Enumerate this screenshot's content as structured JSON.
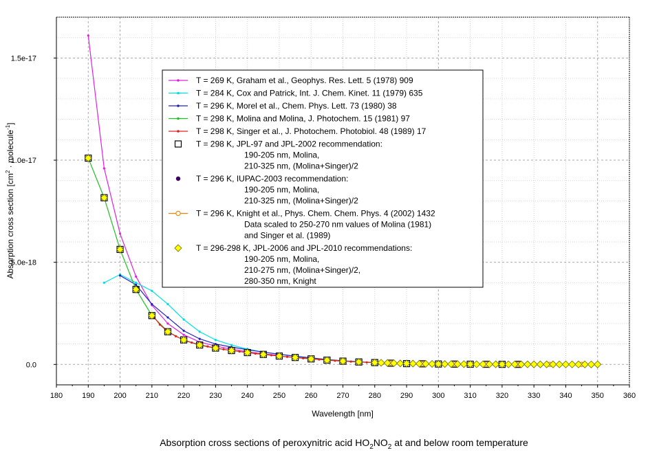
{
  "chart_data": {
    "type": "line",
    "title": "Absorption cross sections of peroxynitric acid HO2NO2 at and below room temperature",
    "xlabel": "Wavelength [nm]",
    "ylabel_main": "Absorption cross section [cm",
    "ylabel_mid": " · molecule",
    "ylabel_end": "]",
    "ylabel_sup1": "2",
    "ylabel_sup2": "-1",
    "xlim": [
      180,
      360
    ],
    "ylim": [
      -1e-18,
      1.7e-17
    ],
    "x_ticks": [
      180,
      190,
      200,
      210,
      220,
      230,
      240,
      250,
      260,
      270,
      280,
      290,
      300,
      310,
      320,
      330,
      340,
      350,
      360
    ],
    "y_ticks": [
      {
        "value": 0,
        "label": "0.0"
      },
      {
        "value": 5e-18,
        "label": "5.0e-18"
      },
      {
        "value": 1e-17,
        "label": "1.0e-17"
      },
      {
        "value": 1.5e-17,
        "label": "1.5e-17"
      }
    ],
    "series": [
      {
        "name": "Graham 1978",
        "color": "#e020e0",
        "marker": "dot",
        "x": [
          190,
          195,
          200,
          205,
          210,
          215,
          220,
          225,
          230,
          235,
          240,
          245,
          250
        ],
        "y": [
          1.61e-17,
          9.6e-18,
          6.4e-18,
          4.3e-18,
          2.9e-18,
          2e-18,
          1.45e-18,
          1.1e-18,
          9e-19,
          7.5e-19,
          6.2e-19,
          5.2e-19,
          4.4e-19
        ]
      },
      {
        "name": "Cox and Patrick 1979",
        "color": "#00e0e0",
        "marker": "dot",
        "x": [
          195,
          200,
          205,
          210,
          215,
          220,
          225,
          230,
          235,
          240,
          245,
          250,
          255,
          260,
          265
        ],
        "y": [
          4e-18,
          4.4e-18,
          4e-18,
          3.6e-18,
          2.95e-18,
          2.2e-18,
          1.6e-18,
          1.2e-18,
          9.5e-19,
          7.5e-19,
          6e-19,
          5e-19,
          4e-19,
          3e-19,
          2e-19
        ]
      },
      {
        "name": "Morel 1980",
        "color": "#2020c0",
        "marker": "dot",
        "x": [
          200,
          205,
          210,
          215,
          220,
          225,
          230,
          235,
          240,
          245,
          250,
          255,
          260,
          265,
          270,
          275,
          280
        ],
        "y": [
          4.35e-18,
          3.9e-18,
          2.95e-18,
          2.3e-18,
          1.65e-18,
          1.25e-18,
          1e-18,
          8.5e-19,
          7.2e-19,
          6e-19,
          5e-19,
          4e-19,
          3.2e-19,
          2.4e-19,
          1.8e-19,
          1.3e-19,
          9e-20
        ]
      },
      {
        "name": "Molina and Molina 1981",
        "color": "#20c020",
        "marker": "dot",
        "x": [
          190,
          195,
          200,
          205,
          210,
          215,
          220,
          225,
          230,
          235,
          240,
          245,
          250,
          255,
          260,
          265,
          270,
          275,
          280,
          285,
          290,
          295,
          300,
          305,
          310,
          315,
          320,
          325
        ],
        "y": [
          1.01e-17,
          8.16e-18,
          5.63e-18,
          3.67e-18,
          2.39e-18,
          1.61e-18,
          1.18e-18,
          9.4e-19,
          7.9e-19,
          6.8e-19,
          5.8e-19,
          4.9e-19,
          4.1e-19,
          3.4e-19,
          2.8e-19,
          2.2e-19,
          1.6e-19,
          1.2e-19,
          9e-20,
          6e-20,
          4e-20,
          3e-20,
          2e-20,
          1.5e-20,
          1e-20,
          7e-21,
          5e-21,
          3e-21
        ]
      },
      {
        "name": "Singer 1989",
        "color": "#e02020",
        "marker": "dot",
        "x": [
          210,
          212.5,
          215,
          217.5,
          220,
          222.5,
          225,
          227.5,
          230,
          232.5,
          235,
          237.5,
          240,
          242.5,
          245,
          247.5,
          250,
          252.5,
          255,
          257.5,
          260,
          262.5,
          265,
          267.5,
          270,
          272.5,
          275,
          277.5,
          280
        ],
        "y": [
          2.45e-18,
          1.95e-18,
          1.6e-18,
          1.38e-18,
          1.2e-18,
          1.07e-18,
          9.6e-19,
          8.8e-19,
          8e-19,
          7.4e-19,
          6.8e-19,
          6.3e-19,
          5.8e-19,
          5.3e-19,
          4.9e-19,
          4.5e-19,
          4.1e-19,
          3.7e-19,
          3.4e-19,
          3e-19,
          2.7e-19,
          2.4e-19,
          2.1e-19,
          1.8e-19,
          1.6e-19,
          1.4e-19,
          1.2e-19,
          1e-19,
          9e-20
        ]
      },
      {
        "name": "JPL-97 / JPL-2002",
        "color": "#000000",
        "marker": "open-square",
        "x": [
          190,
          195,
          200,
          205,
          210,
          215,
          220,
          225,
          230,
          235,
          240,
          245,
          250,
          255,
          260,
          265,
          270,
          275,
          280,
          285,
          290,
          295,
          300,
          305,
          310,
          315,
          320,
          325
        ],
        "y": [
          1.01e-17,
          8.16e-18,
          5.63e-18,
          3.67e-18,
          2.39e-18,
          1.6e-18,
          1.2e-18,
          9.5e-19,
          8e-19,
          6.8e-19,
          5.8e-19,
          4.9e-19,
          4.1e-19,
          3.4e-19,
          2.7e-19,
          2.1e-19,
          1.6e-19,
          1.2e-19,
          9e-20,
          6e-20,
          4e-20,
          3e-20,
          2e-20,
          1.5e-20,
          1e-20,
          7e-21,
          5e-21,
          3e-21
        ]
      },
      {
        "name": "IUPAC-2003",
        "color": "#400060",
        "marker": "filled-circle",
        "x": [
          190,
          195,
          200,
          205,
          210,
          215,
          220,
          225,
          230,
          235,
          240,
          245,
          250,
          255,
          260,
          265,
          270,
          275,
          280,
          285,
          290,
          295,
          300,
          305,
          310,
          315,
          320,
          325
        ],
        "y": [
          1.01e-17,
          8.16e-18,
          5.63e-18,
          3.67e-18,
          2.39e-18,
          1.6e-18,
          1.2e-18,
          9.5e-19,
          8e-19,
          6.8e-19,
          5.8e-19,
          4.9e-19,
          4.1e-19,
          3.4e-19,
          2.7e-19,
          2.1e-19,
          1.6e-19,
          1.2e-19,
          9e-20,
          6e-20,
          4e-20,
          3e-20,
          2e-20,
          1.5e-20,
          1e-20,
          7e-21,
          5e-21,
          3e-21
        ]
      },
      {
        "name": "Knight 2002",
        "color": "#f08000",
        "marker": "open-circle",
        "x": [
          280,
          285,
          290,
          295,
          300,
          305,
          310,
          315,
          320,
          325,
          330,
          335,
          340,
          345,
          350
        ],
        "y": [
          9e-20,
          6e-20,
          4.5e-20,
          3e-20,
          2.2e-20,
          1.6e-20,
          1.1e-20,
          8e-21,
          6e-21,
          4e-21,
          3e-21,
          2e-21,
          1.5e-21,
          1e-21,
          7e-22
        ]
      },
      {
        "name": "JPL-2006 / JPL-2010",
        "color": "#ffff00",
        "marker": "diamond",
        "x": [
          190,
          195,
          200,
          205,
          210,
          215,
          220,
          225,
          230,
          235,
          240,
          245,
          250,
          255,
          260,
          265,
          270,
          275,
          280,
          282,
          284,
          286,
          288,
          290,
          292,
          294,
          296,
          298,
          300,
          302,
          304,
          306,
          308,
          310,
          312,
          314,
          316,
          318,
          320,
          322,
          324,
          326,
          328,
          330,
          332,
          334,
          336,
          338,
          340,
          342,
          344,
          346,
          348,
          350
        ],
        "y": [
          1.01e-17,
          8.16e-18,
          5.63e-18,
          3.67e-18,
          2.39e-18,
          1.6e-18,
          1.2e-18,
          9.5e-19,
          8e-19,
          6.8e-19,
          5.8e-19,
          4.9e-19,
          4.1e-19,
          3.4e-19,
          2.7e-19,
          2.1e-19,
          1.6e-19,
          1.2e-19,
          9e-20,
          8e-20,
          7e-20,
          6e-20,
          5e-20,
          4.5e-20,
          4e-20,
          3.5e-20,
          3e-20,
          2.6e-20,
          2.2e-20,
          1.9e-20,
          1.7e-20,
          1.5e-20,
          1.3e-20,
          1.1e-20,
          1e-20,
          9e-21,
          8e-21,
          7e-21,
          6e-21,
          5e-21,
          4.5e-21,
          4e-21,
          3.5e-21,
          3e-21,
          2.7e-21,
          2.4e-21,
          2e-21,
          1.8e-21,
          1.5e-21,
          1.3e-21,
          1.1e-21,
          1e-21,
          8e-22,
          7e-22
        ]
      }
    ],
    "legend": {
      "placement": "center-right",
      "entries": [
        {
          "marker": "line-dot",
          "color": "#e020e0",
          "lines": [
            "T = 269 K, Graham et al., Geophys. Res. Lett. 5 (1978) 909"
          ]
        },
        {
          "marker": "line-dot",
          "color": "#00e0e0",
          "lines": [
            "T = 284 K, Cox and Patrick, Int. J. Chem. Kinet. 11 (1979) 635"
          ]
        },
        {
          "marker": "line-dot",
          "color": "#2020c0",
          "lines": [
            "T = 296 K, Morel et al., Chem. Phys. Lett. 73 (1980) 38"
          ]
        },
        {
          "marker": "line-dot",
          "color": "#20c020",
          "lines": [
            "T = 298 K, Molina and Molina, J. Photochem. 15 (1981) 97"
          ]
        },
        {
          "marker": "line-dot",
          "color": "#e02020",
          "lines": [
            "T = 298 K, Singer et al., J. Photochem. Photobiol. 48 (1989) 17"
          ]
        },
        {
          "marker": "open-square",
          "color": "#000000",
          "lines": [
            "T = 298 K, JPL-97 and JPL-2002 recommendation:",
            "190-205 nm, Molina,",
            "210-325 nm, (Molina+Singer)/2"
          ]
        },
        {
          "marker": "filled-circle",
          "color": "#400060",
          "lines": [
            "T = 296 K, IUPAC-2003 recommendation:",
            "190-205 nm, Molina,",
            "210-325 nm, (Molina+Singer)/2"
          ]
        },
        {
          "marker": "line-open-circle",
          "color": "#f08000",
          "lines": [
            "T = 296 K, Knight et al., Phys. Chem. Chem. Phys. 4 (2002) 1432",
            "Data scaled to 250-270 nm values of Molina (1981)",
            "and Singer et al. (1989)"
          ]
        },
        {
          "marker": "diamond",
          "color": "#ffff00",
          "lines": [
            "T = 296-298 K, JPL-2006 and JPL-2010 recommendations:",
            "190-205 nm, Molina,",
            "210-275 nm, (Molina+Singer)/2,",
            "280-350 nm, Knight"
          ]
        }
      ]
    }
  },
  "caption": {
    "prefix": "Absorption cross sections of peroxynitric acid HO",
    "sub1": "2",
    "mid": "NO",
    "sub2": "2",
    "suffix": " at and below room temperature"
  }
}
